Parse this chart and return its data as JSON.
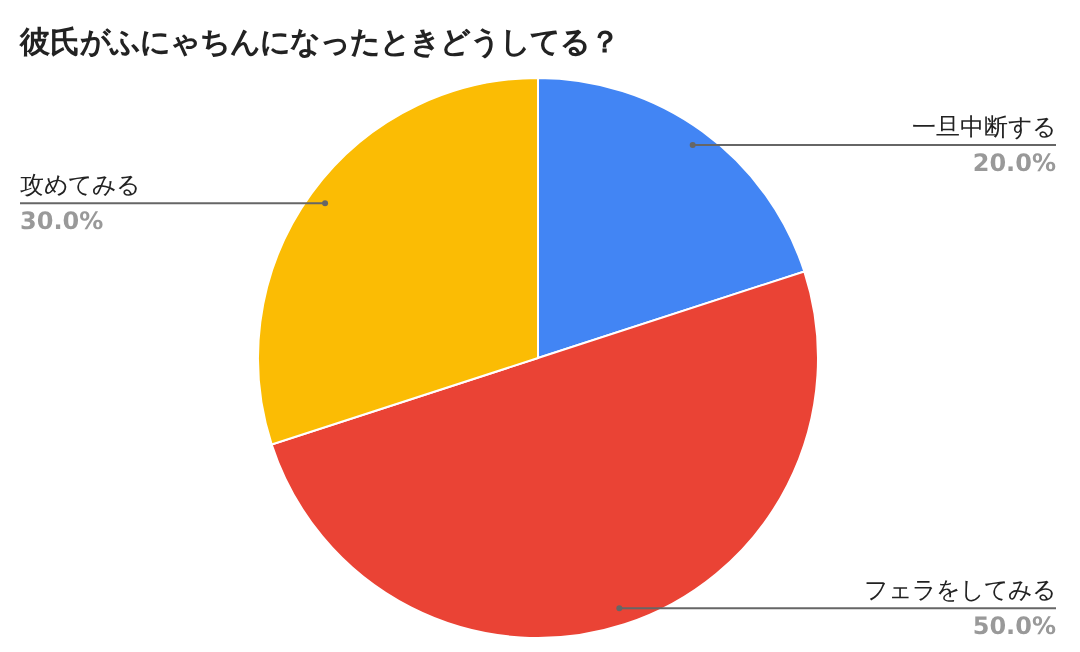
{
  "chart_data": {
    "type": "pie",
    "title": "彼氏がふにゃちんになったときどうしてる？",
    "categories": [
      "一旦中断する",
      "フェラをしてみる",
      "攻めてみる"
    ],
    "values": [
      20,
      50,
      30
    ],
    "colors": [
      "#4285f4",
      "#ea4335",
      "#fbbc04"
    ],
    "value_labels": [
      "20.0%",
      "50.0%",
      "30.0%"
    ]
  }
}
